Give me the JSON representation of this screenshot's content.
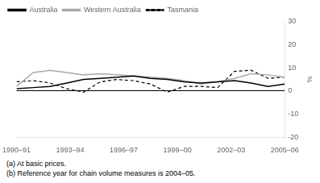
{
  "chart_data": {
    "type": "line",
    "ylabel": "%",
    "x": [
      0,
      0.9375,
      1.875,
      2.8125,
      3.75,
      4.6875,
      5.625,
      6.5625,
      7.5,
      8.4375,
      9.375,
      10.3125,
      11.25,
      12.1875,
      13.125,
      14.0625,
      15
    ],
    "xlim": [
      0,
      15
    ],
    "xticks": [
      {
        "value": 0,
        "label": "1990–91"
      },
      {
        "value": 3,
        "label": "1993–94"
      },
      {
        "value": 6,
        "label": "1996–97"
      },
      {
        "value": 9,
        "label": "1999–00"
      },
      {
        "value": 12,
        "label": "2002–03"
      },
      {
        "value": 15,
        "label": "2005–06"
      }
    ],
    "ylim": [
      -20,
      30
    ],
    "yticks": [
      -20,
      -10,
      0,
      10,
      20,
      30
    ],
    "grid": false,
    "legend": "upper left",
    "annotations": [
      "(a) At basic prices.",
      "(b) Reference year for chain volume measures is 2004–05."
    ],
    "series": [
      {
        "name": "Australia",
        "color": "#000000",
        "line_style": "solid",
        "values": [
          1.0,
          1.5,
          2.0,
          3.5,
          5.0,
          5.5,
          6.0,
          6.5,
          5.5,
          5.0,
          4.0,
          3.5,
          4.0,
          4.5,
          3.5,
          2.0,
          3.0
        ]
      },
      {
        "name": "Western Australia",
        "color": "#aaaaaa",
        "line_style": "solid",
        "values": [
          2.0,
          8.0,
          9.0,
          8.0,
          7.0,
          7.5,
          7.0,
          6.5,
          6.0,
          5.5,
          4.5,
          3.0,
          4.0,
          5.5,
          7.5,
          7.0,
          6.0
        ]
      },
      {
        "name": "Tasmania",
        "color": "#000000",
        "line_style": "dashed",
        "values": [
          4.0,
          4.5,
          3.5,
          1.0,
          -0.5,
          4.0,
          5.0,
          4.5,
          3.0,
          -0.5,
          2.0,
          2.0,
          1.5,
          8.5,
          9.0,
          5.5,
          6.0
        ]
      }
    ]
  }
}
